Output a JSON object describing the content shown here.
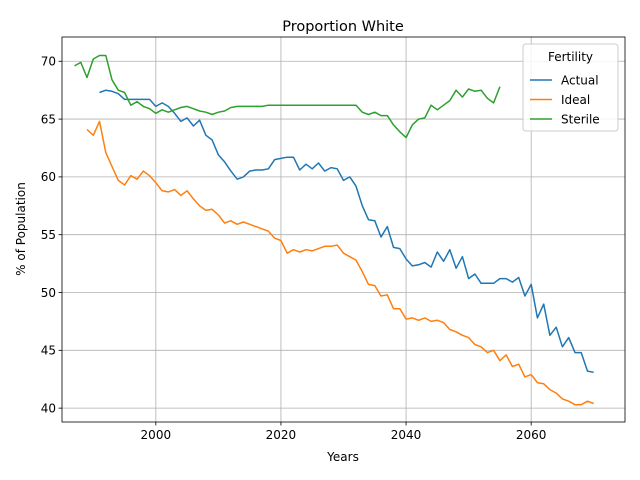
{
  "chart_data": {
    "type": "line",
    "title": "Proportion White",
    "xlabel": "Years",
    "ylabel": "% of Population",
    "xlim": [
      1985,
      2075
    ],
    "ylim": [
      38.8,
      72.1
    ],
    "xticks": [
      2000,
      2020,
      2040,
      2060
    ],
    "yticks": [
      40,
      45,
      50,
      55,
      60,
      65,
      70
    ],
    "grid": true,
    "legend": {
      "title": "Fertility",
      "position": "top-right"
    },
    "series": [
      {
        "name": "Actual",
        "color": "#1f77b4",
        "x": [
          1991,
          1992,
          1993,
          1994,
          1995,
          1996,
          1997,
          1998,
          1999,
          2000,
          2001,
          2002,
          2003,
          2004,
          2005,
          2006,
          2007,
          2008,
          2009,
          2010,
          2011,
          2012,
          2013,
          2014,
          2015,
          2016,
          2017,
          2018,
          2019,
          2020,
          2021,
          2022,
          2023,
          2024,
          2025,
          2026,
          2027,
          2028,
          2029,
          2030,
          2031,
          2032,
          2033,
          2034,
          2035,
          2036,
          2037,
          2038,
          2039,
          2040,
          2041,
          2042,
          2043,
          2044,
          2045,
          2046,
          2047,
          2048,
          2049,
          2050,
          2051,
          2052,
          2053,
          2054,
          2055,
          2056,
          2057,
          2058,
          2059,
          2060,
          2061,
          2062,
          2063,
          2064,
          2065,
          2066,
          2067,
          2068,
          2069,
          2070
        ],
        "y": [
          67.3,
          67.5,
          67.4,
          67.2,
          66.7,
          66.7,
          66.7,
          66.7,
          66.7,
          66.1,
          66.4,
          66.1,
          65.5,
          64.8,
          65.1,
          64.4,
          64.9,
          63.6,
          63.2,
          61.9,
          61.3,
          60.5,
          59.8,
          60.0,
          60.5,
          60.6,
          60.6,
          60.7,
          61.5,
          61.6,
          61.7,
          61.7,
          60.6,
          61.1,
          60.7,
          61.2,
          60.5,
          60.8,
          60.7,
          59.7,
          60.0,
          59.2,
          57.5,
          56.3,
          56.2,
          54.8,
          55.7,
          53.9,
          53.8,
          52.9,
          52.3,
          52.4,
          52.6,
          52.2,
          53.5,
          52.7,
          53.7,
          52.1,
          53.1,
          51.2,
          51.6,
          50.8,
          50.8,
          50.8,
          51.2,
          51.2,
          50.9,
          51.3,
          49.7,
          50.7,
          47.8,
          49.0,
          46.3,
          47.0,
          45.3,
          46.1,
          44.8,
          44.8,
          43.2,
          43.1
        ]
      },
      {
        "name": "Ideal",
        "color": "#ff7f0e",
        "x": [
          1989,
          1990,
          1991,
          1992,
          1993,
          1994,
          1995,
          1996,
          1997,
          1998,
          1999,
          2000,
          2001,
          2002,
          2003,
          2004,
          2005,
          2006,
          2007,
          2008,
          2009,
          2010,
          2011,
          2012,
          2013,
          2014,
          2015,
          2016,
          2017,
          2018,
          2019,
          2020,
          2021,
          2022,
          2023,
          2024,
          2025,
          2026,
          2027,
          2028,
          2029,
          2030,
          2031,
          2032,
          2033,
          2034,
          2035,
          2036,
          2037,
          2038,
          2039,
          2040,
          2041,
          2042,
          2043,
          2044,
          2045,
          2046,
          2047,
          2048,
          2049,
          2050,
          2051,
          2052,
          2053,
          2054,
          2055,
          2056,
          2057,
          2058,
          2059,
          2060,
          2061,
          2062,
          2063,
          2064,
          2065,
          2066,
          2067,
          2068,
          2069,
          2070
        ],
        "y": [
          64.1,
          63.6,
          64.8,
          62.1,
          60.9,
          59.7,
          59.3,
          60.1,
          59.8,
          60.5,
          60.1,
          59.5,
          58.8,
          58.7,
          58.9,
          58.4,
          58.8,
          58.1,
          57.5,
          57.1,
          57.2,
          56.7,
          56.0,
          56.2,
          55.9,
          56.1,
          55.9,
          55.7,
          55.5,
          55.3,
          54.7,
          54.5,
          53.4,
          53.7,
          53.5,
          53.7,
          53.6,
          53.8,
          54.0,
          54.0,
          54.1,
          53.4,
          53.1,
          52.8,
          51.8,
          50.7,
          50.6,
          49.7,
          49.8,
          48.6,
          48.6,
          47.7,
          47.8,
          47.6,
          47.8,
          47.5,
          47.6,
          47.4,
          46.8,
          46.6,
          46.3,
          46.1,
          45.5,
          45.3,
          44.8,
          45.0,
          44.1,
          44.6,
          43.6,
          43.8,
          42.7,
          42.9,
          42.2,
          42.1,
          41.6,
          41.3,
          40.8,
          40.6,
          40.3,
          40.3,
          40.6,
          40.4
        ]
      },
      {
        "name": "Sterile",
        "color": "#2ca02c",
        "x": [
          1987,
          1988,
          1989,
          1990,
          1991,
          1992,
          1993,
          1994,
          1995,
          1996,
          1997,
          1998,
          1999,
          2000,
          2001,
          2002,
          2003,
          2004,
          2005,
          2006,
          2007,
          2008,
          2009,
          2010,
          2011,
          2012,
          2013,
          2014,
          2015,
          2016,
          2017,
          2018,
          2019,
          2020,
          2021,
          2022,
          2023,
          2024,
          2025,
          2026,
          2027,
          2028,
          2029,
          2030,
          2031,
          2032,
          2033,
          2034,
          2035,
          2036,
          2037,
          2038,
          2039,
          2040,
          2041,
          2042,
          2043,
          2044,
          2045,
          2046,
          2047,
          2048,
          2049,
          2050,
          2051,
          2052,
          2053,
          2054,
          2055
        ],
        "y": [
          69.6,
          69.9,
          68.6,
          70.2,
          70.5,
          70.5,
          68.4,
          67.5,
          67.3,
          66.2,
          66.5,
          66.1,
          65.9,
          65.5,
          65.8,
          65.6,
          65.8,
          66.0,
          66.1,
          65.9,
          65.7,
          65.6,
          65.4,
          65.6,
          65.7,
          66.0,
          66.1,
          66.1,
          66.1,
          66.1,
          66.1,
          66.2,
          66.2,
          66.2,
          66.2,
          66.2,
          66.2,
          66.2,
          66.2,
          66.2,
          66.2,
          66.2,
          66.2,
          66.2,
          66.2,
          66.2,
          65.6,
          65.4,
          65.6,
          65.3,
          65.3,
          64.5,
          63.9,
          63.4,
          64.5,
          65.0,
          65.1,
          66.2,
          65.8,
          66.2,
          66.6,
          67.5,
          66.9,
          67.6,
          67.4,
          67.5,
          66.8,
          66.4,
          67.8
        ]
      }
    ]
  }
}
